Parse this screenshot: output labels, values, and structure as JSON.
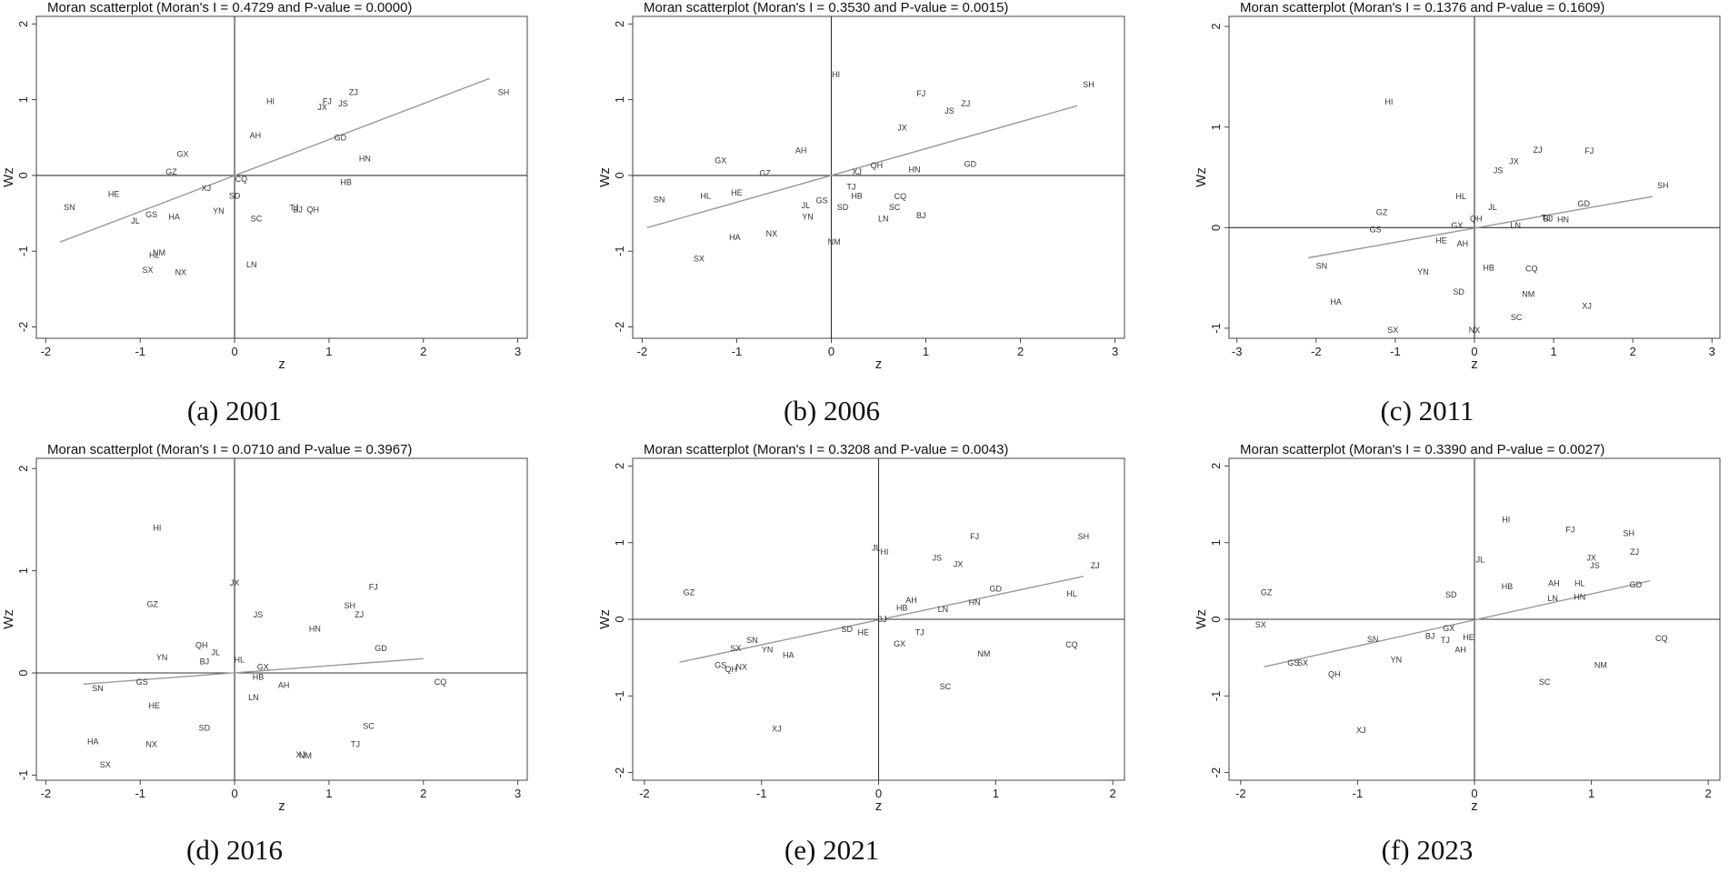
{
  "chart_data": [
    {
      "type": "scatter",
      "title": "Moran scatterplot (Moran's I = 0.4729 and P-value = 0.0000)",
      "caption": "(a) 2001",
      "xlabel": "z",
      "ylabel": "Wz",
      "xlim": [
        -2.1,
        3.1
      ],
      "ylim": [
        -2.15,
        2.1
      ],
      "xticks": [
        -2,
        -1,
        0,
        1,
        2,
        3
      ],
      "yticks": [
        -2,
        -1,
        0,
        1,
        2
      ],
      "fit_line": [
        [
          -1.85,
          -0.88
        ],
        [
          2.7,
          1.28
        ]
      ],
      "points": [
        {
          "label": "SH",
          "x": 2.85,
          "y": 1.1
        },
        {
          "label": "ZJ",
          "x": 1.26,
          "y": 1.1
        },
        {
          "label": "FJ",
          "x": 0.98,
          "y": 0.98
        },
        {
          "label": "JS",
          "x": 1.15,
          "y": 0.95
        },
        {
          "label": "JX",
          "x": 0.93,
          "y": 0.9
        },
        {
          "label": "HI",
          "x": 0.38,
          "y": 0.98
        },
        {
          "label": "AH",
          "x": 0.22,
          "y": 0.53
        },
        {
          "label": "GD",
          "x": 1.12,
          "y": 0.5
        },
        {
          "label": "HN",
          "x": 1.38,
          "y": 0.22
        },
        {
          "label": "HB",
          "x": 1.18,
          "y": -0.09
        },
        {
          "label": "GX",
          "x": -0.55,
          "y": 0.28
        },
        {
          "label": "GZ",
          "x": -0.67,
          "y": 0.05
        },
        {
          "label": "CQ",
          "x": 0.07,
          "y": -0.05
        },
        {
          "label": "XJ",
          "x": -0.3,
          "y": -0.17
        },
        {
          "label": "SD",
          "x": 0.0,
          "y": -0.27
        },
        {
          "label": "HE",
          "x": -1.28,
          "y": -0.25
        },
        {
          "label": "SN",
          "x": -1.75,
          "y": -0.42
        },
        {
          "label": "YN",
          "x": -0.17,
          "y": -0.47
        },
        {
          "label": "TJ",
          "x": 0.63,
          "y": -0.43
        },
        {
          "label": "BJ",
          "x": 0.67,
          "y": -0.45
        },
        {
          "label": "QH",
          "x": 0.83,
          "y": -0.45
        },
        {
          "label": "GS",
          "x": -0.88,
          "y": -0.52
        },
        {
          "label": "HA",
          "x": -0.64,
          "y": -0.55
        },
        {
          "label": "SC",
          "x": 0.23,
          "y": -0.57
        },
        {
          "label": "JL",
          "x": -1.05,
          "y": -0.6
        },
        {
          "label": "NM",
          "x": -0.8,
          "y": -1.02
        },
        {
          "label": "HL",
          "x": -0.85,
          "y": -1.05
        },
        {
          "label": "LN",
          "x": 0.18,
          "y": -1.18
        },
        {
          "label": "SX",
          "x": -0.92,
          "y": -1.25
        },
        {
          "label": "NX",
          "x": -0.57,
          "y": -1.28
        }
      ]
    },
    {
      "type": "scatter",
      "title": "Moran scatterplot (Moran's I = 0.3530 and P-value = 0.0015)",
      "caption": "(b) 2006",
      "xlabel": "z",
      "ylabel": "Wz",
      "xlim": [
        -2.1,
        3.1
      ],
      "ylim": [
        -2.15,
        2.1
      ],
      "xticks": [
        -2,
        -1,
        0,
        1,
        2,
        3
      ],
      "yticks": [
        -2,
        -1,
        0,
        1,
        2
      ],
      "fit_line": [
        [
          -1.95,
          -0.69
        ],
        [
          2.6,
          0.92
        ]
      ],
      "points": [
        {
          "label": "SH",
          "x": 2.72,
          "y": 1.2
        },
        {
          "label": "HI",
          "x": 0.05,
          "y": 1.33
        },
        {
          "label": "FJ",
          "x": 0.95,
          "y": 1.08
        },
        {
          "label": "ZJ",
          "x": 1.42,
          "y": 0.95
        },
        {
          "label": "JS",
          "x": 1.25,
          "y": 0.85
        },
        {
          "label": "JX",
          "x": 0.75,
          "y": 0.63
        },
        {
          "label": "AH",
          "x": -0.32,
          "y": 0.33
        },
        {
          "label": "GX",
          "x": -1.17,
          "y": 0.2
        },
        {
          "label": "GZ",
          "x": -0.7,
          "y": 0.03
        },
        {
          "label": "QH",
          "x": 0.48,
          "y": 0.13
        },
        {
          "label": "HN",
          "x": 0.88,
          "y": 0.08
        },
        {
          "label": "GD",
          "x": 1.47,
          "y": 0.15
        },
        {
          "label": "XJ",
          "x": 0.27,
          "y": 0.05
        },
        {
          "label": "TJ",
          "x": 0.21,
          "y": -0.15
        },
        {
          "label": "HB",
          "x": 0.27,
          "y": -0.27
        },
        {
          "label": "CQ",
          "x": 0.73,
          "y": -0.28
        },
        {
          "label": "SN",
          "x": -1.82,
          "y": -0.32
        },
        {
          "label": "HL",
          "x": -1.33,
          "y": -0.27
        },
        {
          "label": "HE",
          "x": -1.0,
          "y": -0.23
        },
        {
          "label": "GS",
          "x": -0.1,
          "y": -0.33
        },
        {
          "label": "JL",
          "x": -0.27,
          "y": -0.4
        },
        {
          "label": "SD",
          "x": 0.12,
          "y": -0.42
        },
        {
          "label": "SC",
          "x": 0.67,
          "y": -0.42
        },
        {
          "label": "BJ",
          "x": 0.95,
          "y": -0.53
        },
        {
          "label": "LN",
          "x": 0.55,
          "y": -0.57
        },
        {
          "label": "YN",
          "x": -0.25,
          "y": -0.55
        },
        {
          "label": "NX",
          "x": -0.63,
          "y": -0.77
        },
        {
          "label": "HA",
          "x": -1.02,
          "y": -0.82
        },
        {
          "label": "NM",
          "x": 0.03,
          "y": -0.88
        },
        {
          "label": "SX",
          "x": -1.4,
          "y": -1.1
        }
      ]
    },
    {
      "type": "scatter",
      "title": "Moran scatterplot (Moran's I = 0.1376 and P-value = 0.1609)",
      "caption": "(c) 2011",
      "xlabel": "z",
      "ylabel": "Wz",
      "xlim": [
        -3.1,
        3.1
      ],
      "ylim": [
        -1.1,
        2.1
      ],
      "xticks": [
        -3,
        -2,
        -1,
        0,
        1,
        2,
        3
      ],
      "yticks": [
        -1,
        0,
        1,
        2
      ],
      "fit_line": [
        [
          -2.1,
          -0.3
        ],
        [
          2.25,
          0.31
        ]
      ],
      "points": [
        {
          "label": "HI",
          "x": -1.08,
          "y": 1.25
        },
        {
          "label": "FJ",
          "x": 1.45,
          "y": 0.76
        },
        {
          "label": "ZJ",
          "x": 0.8,
          "y": 0.77
        },
        {
          "label": "JX",
          "x": 0.5,
          "y": 0.66
        },
        {
          "label": "JS",
          "x": 0.3,
          "y": 0.57
        },
        {
          "label": "SH",
          "x": 2.38,
          "y": 0.42
        },
        {
          "label": "HL",
          "x": -0.17,
          "y": 0.31
        },
        {
          "label": "JL",
          "x": 0.23,
          "y": 0.2
        },
        {
          "label": "GD",
          "x": 1.38,
          "y": 0.24
        },
        {
          "label": "GZ",
          "x": -1.17,
          "y": 0.15
        },
        {
          "label": "QH",
          "x": 0.02,
          "y": 0.09
        },
        {
          "label": "TJ",
          "x": 0.9,
          "y": 0.1
        },
        {
          "label": "BJ",
          "x": 0.93,
          "y": 0.09
        },
        {
          "label": "HN",
          "x": 1.12,
          "y": 0.08
        },
        {
          "label": "GX",
          "x": -0.22,
          "y": 0.02
        },
        {
          "label": "LN",
          "x": 0.52,
          "y": 0.02
        },
        {
          "label": "GS",
          "x": -1.25,
          "y": -0.02
        },
        {
          "label": "HE",
          "x": -0.42,
          "y": -0.13
        },
        {
          "label": "AH",
          "x": -0.15,
          "y": -0.16
        },
        {
          "label": "SN",
          "x": -1.93,
          "y": -0.38
        },
        {
          "label": "YN",
          "x": -0.65,
          "y": -0.44
        },
        {
          "label": "HB",
          "x": 0.18,
          "y": -0.4
        },
        {
          "label": "CQ",
          "x": 0.72,
          "y": -0.41
        },
        {
          "label": "SD",
          "x": -0.2,
          "y": -0.64
        },
        {
          "label": "NM",
          "x": 0.68,
          "y": -0.66
        },
        {
          "label": "HA",
          "x": -1.75,
          "y": -0.74
        },
        {
          "label": "XJ",
          "x": 1.42,
          "y": -0.78
        },
        {
          "label": "SC",
          "x": 0.53,
          "y": -0.89
        },
        {
          "label": "SX",
          "x": -1.03,
          "y": -1.02
        },
        {
          "label": "NX",
          "x": 0.0,
          "y": -1.02
        }
      ]
    },
    {
      "type": "scatter",
      "title": "Moran scatterplot (Moran's I = 0.0710 and P-value = 0.3967)",
      "caption": "(d) 2016",
      "xlabel": "z",
      "ylabel": "Wz",
      "xlim": [
        -2.1,
        3.1
      ],
      "ylim": [
        -1.05,
        2.1
      ],
      "xticks": [
        -2,
        -1,
        0,
        1,
        2,
        3
      ],
      "yticks": [
        -1,
        0,
        1,
        2
      ],
      "fit_line": [
        [
          -1.6,
          -0.11
        ],
        [
          2.0,
          0.14
        ]
      ],
      "points": [
        {
          "label": "HI",
          "x": -0.82,
          "y": 1.42
        },
        {
          "label": "JX",
          "x": 0.0,
          "y": 0.88
        },
        {
          "label": "FJ",
          "x": 1.47,
          "y": 0.84
        },
        {
          "label": "GZ",
          "x": -0.87,
          "y": 0.67
        },
        {
          "label": "SH",
          "x": 1.22,
          "y": 0.66
        },
        {
          "label": "JS",
          "x": 0.25,
          "y": 0.57
        },
        {
          "label": "ZJ",
          "x": 1.32,
          "y": 0.57
        },
        {
          "label": "HN",
          "x": 0.85,
          "y": 0.43
        },
        {
          "label": "GD",
          "x": 1.55,
          "y": 0.24
        },
        {
          "label": "QH",
          "x": -0.35,
          "y": 0.27
        },
        {
          "label": "JL",
          "x": -0.2,
          "y": 0.2
        },
        {
          "label": "YN",
          "x": -0.77,
          "y": 0.15
        },
        {
          "label": "BJ",
          "x": -0.32,
          "y": 0.11
        },
        {
          "label": "HL",
          "x": 0.05,
          "y": 0.13
        },
        {
          "label": "GX",
          "x": 0.3,
          "y": 0.06
        },
        {
          "label": "HB",
          "x": 0.25,
          "y": -0.04
        },
        {
          "label": "GS",
          "x": -0.98,
          "y": -0.09
        },
        {
          "label": "AH",
          "x": 0.52,
          "y": -0.12
        },
        {
          "label": "SN",
          "x": -1.45,
          "y": -0.15
        },
        {
          "label": "CQ",
          "x": 2.18,
          "y": -0.09
        },
        {
          "label": "LN",
          "x": 0.2,
          "y": -0.24
        },
        {
          "label": "HE",
          "x": -0.85,
          "y": -0.32
        },
        {
          "label": "SD",
          "x": -0.32,
          "y": -0.54
        },
        {
          "label": "SC",
          "x": 1.42,
          "y": -0.52
        },
        {
          "label": "HA",
          "x": -1.5,
          "y": -0.67
        },
        {
          "label": "NX",
          "x": -0.88,
          "y": -0.7
        },
        {
          "label": "TJ",
          "x": 1.28,
          "y": -0.7
        },
        {
          "label": "XJ",
          "x": 0.7,
          "y": -0.8
        },
        {
          "label": "NM",
          "x": 0.75,
          "y": -0.81
        },
        {
          "label": "SX",
          "x": -1.37,
          "y": -0.9
        }
      ]
    },
    {
      "type": "scatter",
      "title": "Moran scatterplot (Moran's I = 0.3208 and P-value = 0.0043)",
      "caption": "(e) 2021",
      "xlabel": "z",
      "ylabel": "Wz",
      "xlim": [
        -2.1,
        2.1
      ],
      "ylim": [
        -2.1,
        2.1
      ],
      "xticks": [
        -2,
        -1,
        0,
        1,
        2
      ],
      "yticks": [
        -2,
        -1,
        0,
        1,
        2
      ],
      "fit_line": [
        [
          -1.7,
          -0.56
        ],
        [
          1.75,
          0.56
        ]
      ],
      "points": [
        {
          "label": "SH",
          "x": 1.75,
          "y": 1.08
        },
        {
          "label": "FJ",
          "x": 0.82,
          "y": 1.08
        },
        {
          "label": "JL",
          "x": -0.02,
          "y": 0.93
        },
        {
          "label": "HI",
          "x": 0.05,
          "y": 0.88
        },
        {
          "label": "JS",
          "x": 0.5,
          "y": 0.8
        },
        {
          "label": "ZJ",
          "x": 1.85,
          "y": 0.7
        },
        {
          "label": "JX",
          "x": 0.68,
          "y": 0.72
        },
        {
          "label": "GD",
          "x": 1.0,
          "y": 0.4
        },
        {
          "label": "HL",
          "x": 1.65,
          "y": 0.33
        },
        {
          "label": "GZ",
          "x": -1.62,
          "y": 0.35
        },
        {
          "label": "AH",
          "x": 0.28,
          "y": 0.25
        },
        {
          "label": "HN",
          "x": 0.82,
          "y": 0.22
        },
        {
          "label": "HB",
          "x": 0.2,
          "y": 0.15
        },
        {
          "label": "LN",
          "x": 0.55,
          "y": 0.13
        },
        {
          "label": "BJ",
          "x": 0.03,
          "y": 0.0
        },
        {
          "label": "SD",
          "x": -0.27,
          "y": -0.13
        },
        {
          "label": "HE",
          "x": -0.13,
          "y": -0.17
        },
        {
          "label": "TJ",
          "x": 0.35,
          "y": -0.17
        },
        {
          "label": "SN",
          "x": -1.08,
          "y": -0.27
        },
        {
          "label": "GX",
          "x": 0.18,
          "y": -0.32
        },
        {
          "label": "CQ",
          "x": 1.65,
          "y": -0.33
        },
        {
          "label": "SX",
          "x": -1.22,
          "y": -0.38
        },
        {
          "label": "YN",
          "x": -0.95,
          "y": -0.4
        },
        {
          "label": "HA",
          "x": -0.77,
          "y": -0.47
        },
        {
          "label": "NM",
          "x": 0.9,
          "y": -0.45
        },
        {
          "label": "GS",
          "x": -1.35,
          "y": -0.6
        },
        {
          "label": "NX",
          "x": -1.17,
          "y": -0.62
        },
        {
          "label": "QH",
          "x": -1.26,
          "y": -0.65
        },
        {
          "label": "SC",
          "x": 0.57,
          "y": -0.88
        },
        {
          "label": "XJ",
          "x": -0.87,
          "y": -1.43
        }
      ]
    },
    {
      "type": "scatter",
      "title": "Moran scatterplot (Moran's I = 0.3390 and P-value = 0.0027)",
      "caption": "(f) 2023",
      "xlabel": "z",
      "ylabel": "Wz",
      "xlim": [
        -2.1,
        2.1
      ],
      "ylim": [
        -2.1,
        2.1
      ],
      "xticks": [
        -2,
        -1,
        0,
        1,
        2
      ],
      "yticks": [
        -2,
        -1,
        0,
        1,
        2
      ],
      "fit_line": [
        [
          -1.8,
          -0.62
        ],
        [
          1.5,
          0.5
        ]
      ],
      "points": [
        {
          "label": "HI",
          "x": 0.27,
          "y": 1.3
        },
        {
          "label": "FJ",
          "x": 0.82,
          "y": 1.17
        },
        {
          "label": "SH",
          "x": 1.32,
          "y": 1.12
        },
        {
          "label": "ZJ",
          "x": 1.37,
          "y": 0.88
        },
        {
          "label": "JX",
          "x": 1.0,
          "y": 0.8
        },
        {
          "label": "JL",
          "x": 0.05,
          "y": 0.78
        },
        {
          "label": "JS",
          "x": 1.03,
          "y": 0.7
        },
        {
          "label": "HB",
          "x": 0.28,
          "y": 0.43
        },
        {
          "label": "AH",
          "x": 0.68,
          "y": 0.47
        },
        {
          "label": "HL",
          "x": 0.9,
          "y": 0.47
        },
        {
          "label": "GD",
          "x": 1.38,
          "y": 0.45
        },
        {
          "label": "GZ",
          "x": -1.78,
          "y": 0.35
        },
        {
          "label": "SD",
          "x": -0.2,
          "y": 0.32
        },
        {
          "label": "LN",
          "x": 0.67,
          "y": 0.27
        },
        {
          "label": "HN",
          "x": 0.9,
          "y": 0.29
        },
        {
          "label": "SX",
          "x": -1.83,
          "y": -0.07
        },
        {
          "label": "GX",
          "x": -0.22,
          "y": -0.12
        },
        {
          "label": "BJ",
          "x": -0.38,
          "y": -0.22
        },
        {
          "label": "TJ",
          "x": -0.25,
          "y": -0.27
        },
        {
          "label": "HE",
          "x": -0.05,
          "y": -0.24
        },
        {
          "label": "SN",
          "x": -0.87,
          "y": -0.26
        },
        {
          "label": "CQ",
          "x": 1.6,
          "y": -0.25
        },
        {
          "label": "AH",
          "x": -0.12,
          "y": -0.4
        },
        {
          "label": "GS",
          "x": -1.55,
          "y": -0.57
        },
        {
          "label": "SX",
          "x": -1.47,
          "y": -0.57
        },
        {
          "label": "YN",
          "x": -0.67,
          "y": -0.53
        },
        {
          "label": "NM",
          "x": 1.08,
          "y": -0.6
        },
        {
          "label": "QH",
          "x": -1.2,
          "y": -0.72
        },
        {
          "label": "SC",
          "x": 0.6,
          "y": -0.82
        },
        {
          "label": "XJ",
          "x": -0.97,
          "y": -1.45
        }
      ]
    }
  ]
}
